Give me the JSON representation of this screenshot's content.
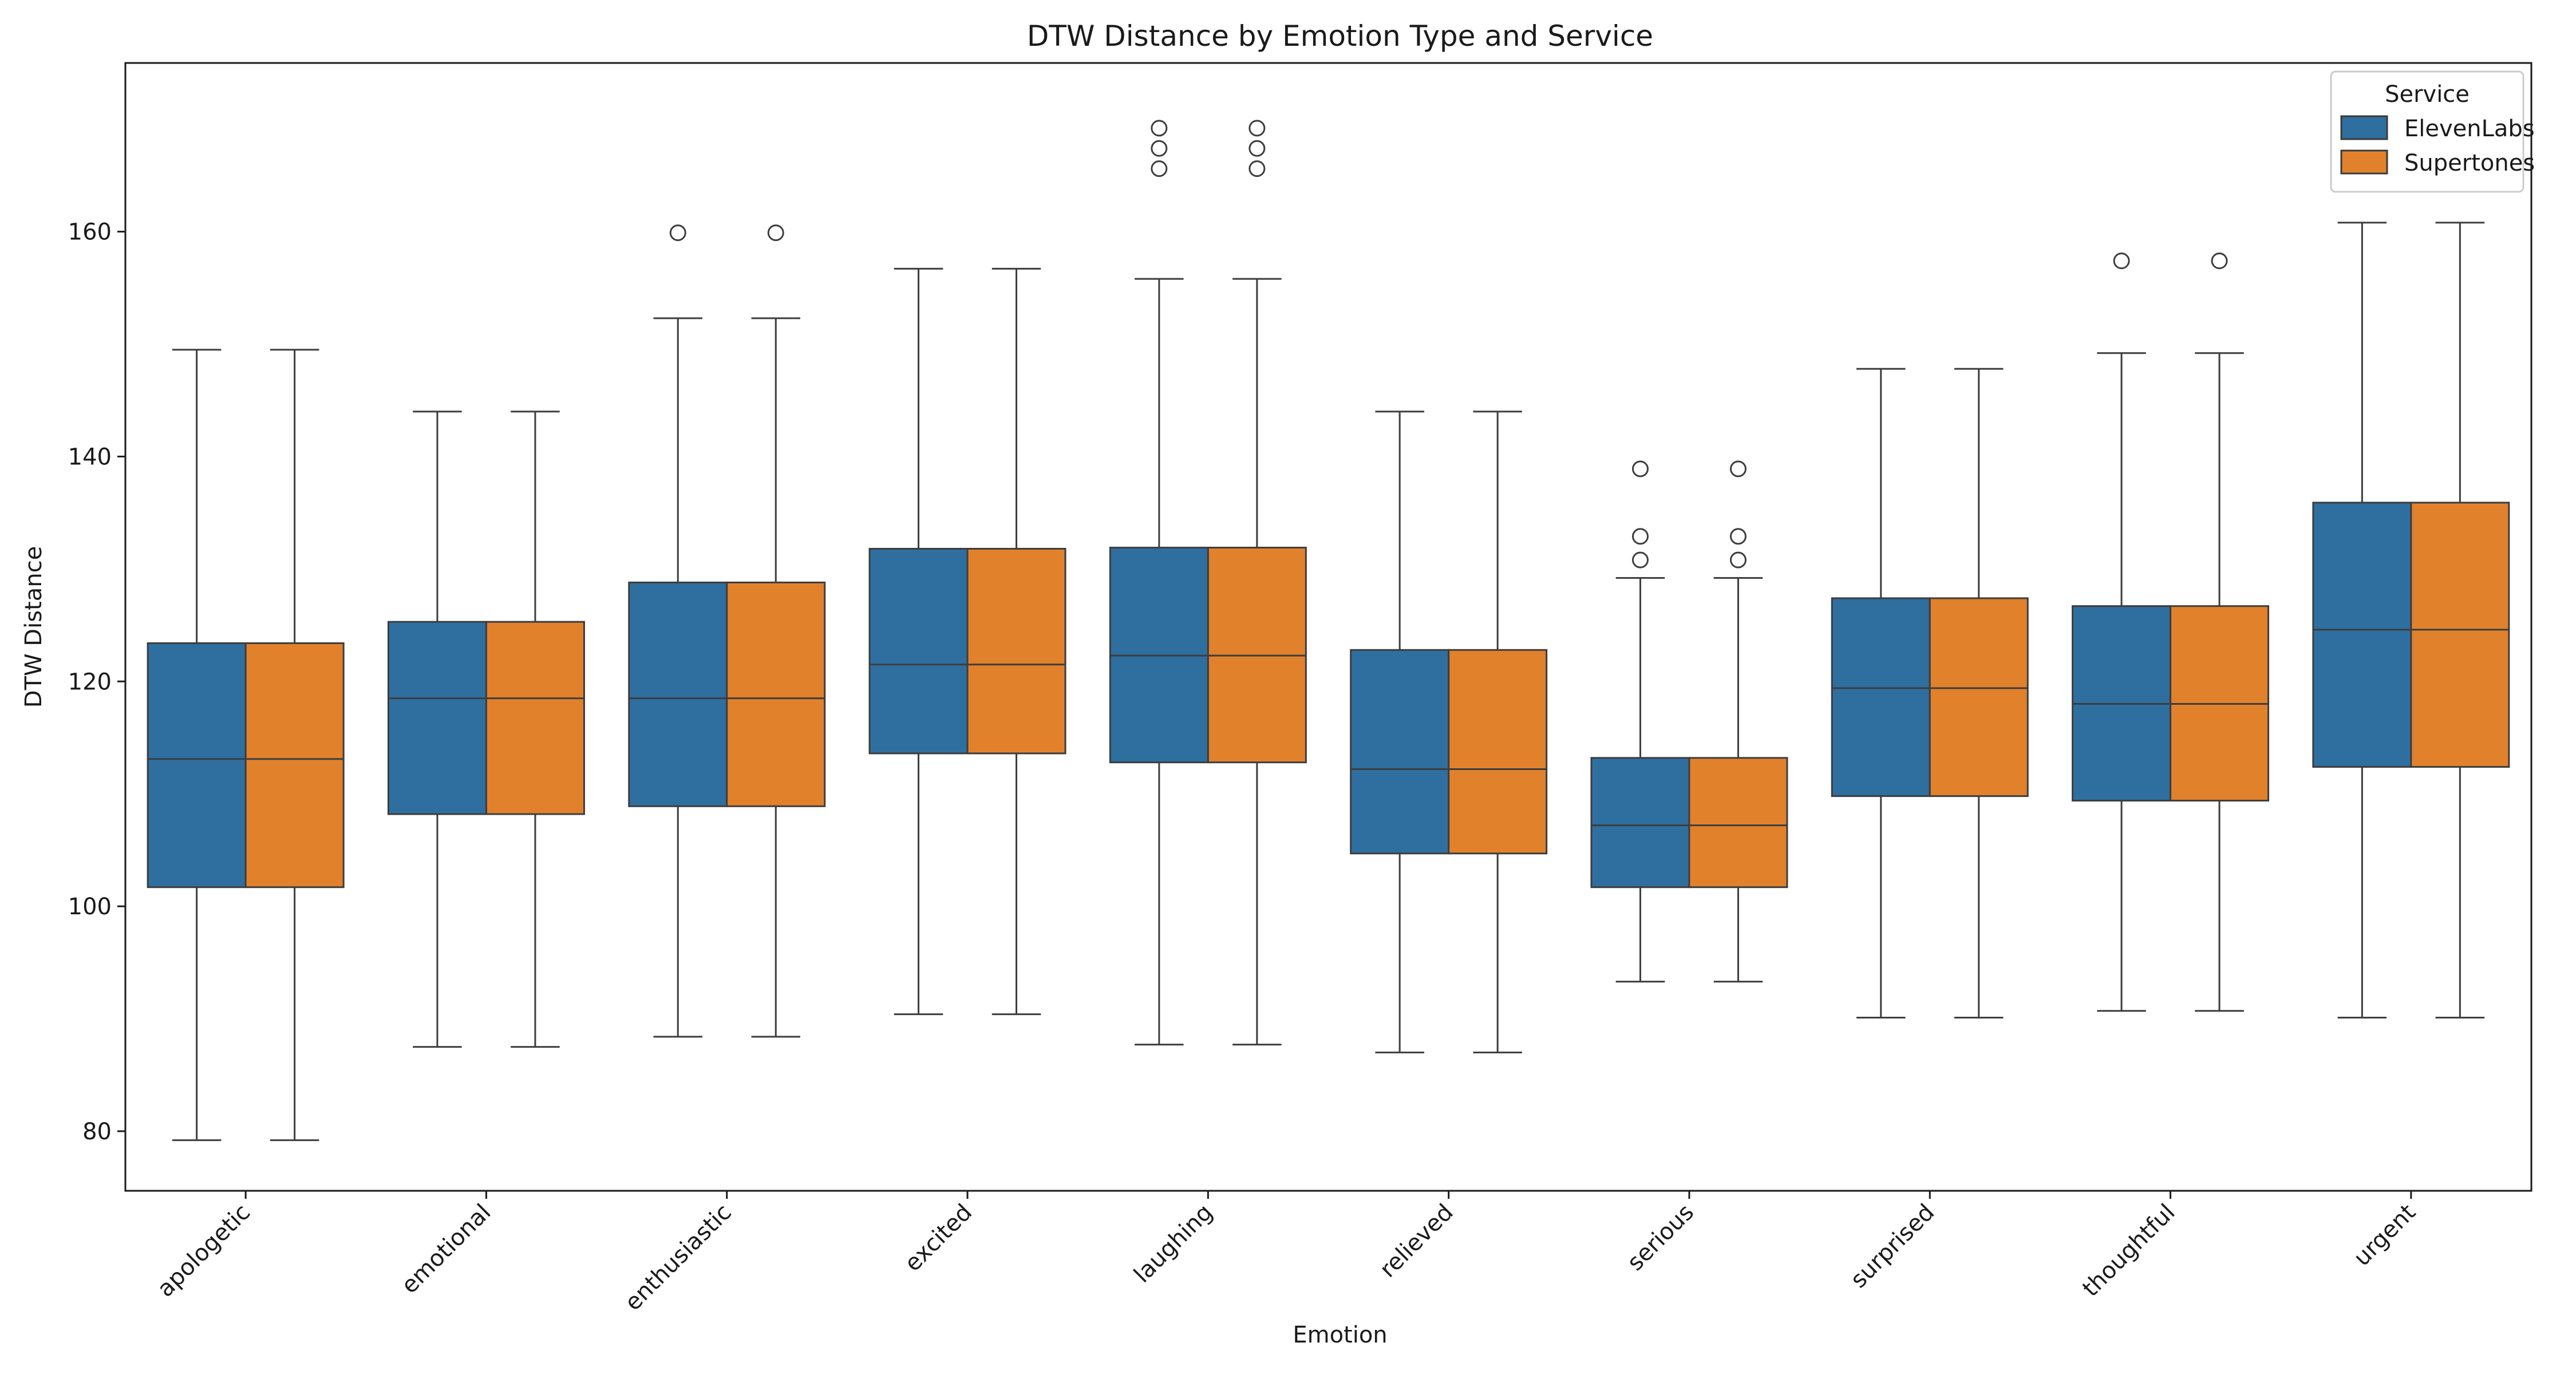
{
  "chart_data": {
    "type": "box",
    "title": "DTW Distance by Emotion Type and Service",
    "xlabel": "Emotion",
    "ylabel": "DTW Distance",
    "ylim": [
      74.7,
      175
    ],
    "yticks": [
      80,
      100,
      120,
      140,
      160
    ],
    "categories": [
      "apologetic",
      "emotional",
      "enthusiastic",
      "excited",
      "laughing",
      "relieved",
      "serious",
      "surprised",
      "thoughtful",
      "urgent"
    ],
    "legend": {
      "title": "Service",
      "placement": "top-right"
    },
    "grid": false,
    "series": [
      {
        "name": "ElevenLabs",
        "color": "#2e6fa0",
        "stats": [
          {
            "whislo": 79.2,
            "q1": 101.7,
            "med": 113.1,
            "q3": 123.4,
            "whishi": 149.5,
            "fliers": []
          },
          {
            "whislo": 87.5,
            "q1": 108.2,
            "med": 118.5,
            "q3": 125.3,
            "whishi": 144.0,
            "fliers": []
          },
          {
            "whislo": 88.4,
            "q1": 108.9,
            "med": 118.5,
            "q3": 128.8,
            "whishi": 152.3,
            "fliers": [
              159.9
            ]
          },
          {
            "whislo": 90.4,
            "q1": 113.6,
            "med": 121.5,
            "q3": 131.8,
            "whishi": 156.7,
            "fliers": []
          },
          {
            "whislo": 87.7,
            "q1": 112.8,
            "med": 122.3,
            "q3": 131.9,
            "whishi": 155.8,
            "fliers": [
              165.6,
              167.4,
              169.2
            ]
          },
          {
            "whislo": 87.0,
            "q1": 104.7,
            "med": 112.2,
            "q3": 122.8,
            "whishi": 144.0,
            "fliers": []
          },
          {
            "whislo": 93.3,
            "q1": 101.7,
            "med": 107.2,
            "q3": 113.2,
            "whishi": 129.2,
            "fliers": [
              130.8,
              132.9,
              138.9
            ]
          },
          {
            "whislo": 90.1,
            "q1": 109.8,
            "med": 119.4,
            "q3": 127.4,
            "whishi": 147.8,
            "fliers": []
          },
          {
            "whislo": 90.7,
            "q1": 109.4,
            "med": 118.0,
            "q3": 126.7,
            "whishi": 149.2,
            "fliers": [
              157.4
            ]
          },
          {
            "whislo": 90.1,
            "q1": 112.4,
            "med": 124.6,
            "q3": 135.9,
            "whishi": 160.8,
            "fliers": []
          }
        ]
      },
      {
        "name": "Supertones",
        "color": "#e1812c",
        "stats": [
          {
            "whislo": 79.2,
            "q1": 101.7,
            "med": 113.1,
            "q3": 123.4,
            "whishi": 149.5,
            "fliers": []
          },
          {
            "whislo": 87.5,
            "q1": 108.2,
            "med": 118.5,
            "q3": 125.3,
            "whishi": 144.0,
            "fliers": []
          },
          {
            "whislo": 88.4,
            "q1": 108.9,
            "med": 118.5,
            "q3": 128.8,
            "whishi": 152.3,
            "fliers": [
              159.9
            ]
          },
          {
            "whislo": 90.4,
            "q1": 113.6,
            "med": 121.5,
            "q3": 131.8,
            "whishi": 156.7,
            "fliers": []
          },
          {
            "whislo": 87.7,
            "q1": 112.8,
            "med": 122.3,
            "q3": 131.9,
            "whishi": 155.8,
            "fliers": [
              165.6,
              167.4,
              169.2
            ]
          },
          {
            "whislo": 87.0,
            "q1": 104.7,
            "med": 112.2,
            "q3": 122.8,
            "whishi": 144.0,
            "fliers": []
          },
          {
            "whislo": 93.3,
            "q1": 101.7,
            "med": 107.2,
            "q3": 113.2,
            "whishi": 129.2,
            "fliers": [
              130.8,
              132.9,
              138.9
            ]
          },
          {
            "whislo": 90.1,
            "q1": 109.8,
            "med": 119.4,
            "q3": 127.4,
            "whishi": 147.8,
            "fliers": []
          },
          {
            "whislo": 90.7,
            "q1": 109.4,
            "med": 118.0,
            "q3": 126.7,
            "whishi": 149.2,
            "fliers": [
              157.4
            ]
          },
          {
            "whislo": 90.1,
            "q1": 112.4,
            "med": 124.6,
            "q3": 135.9,
            "whishi": 160.8,
            "fliers": []
          }
        ]
      }
    ]
  }
}
